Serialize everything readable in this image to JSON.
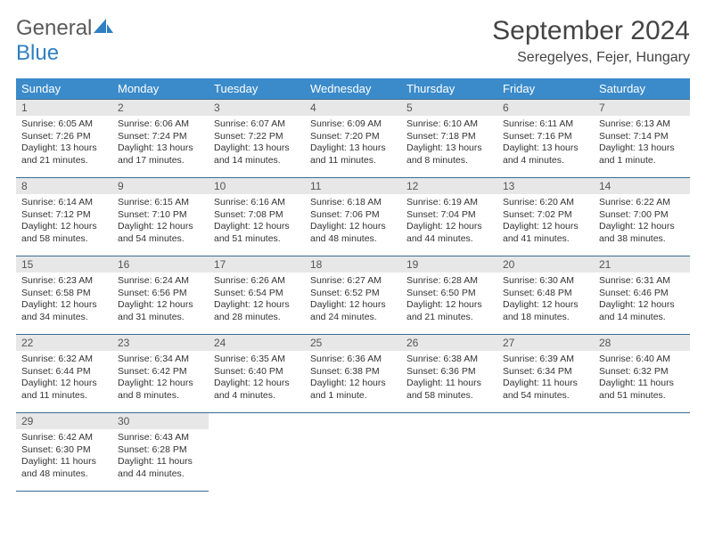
{
  "brand": {
    "general": "General",
    "blue": "Blue"
  },
  "title": "September 2024",
  "location": "Seregelyes, Fejer, Hungary",
  "colors": {
    "header_bg": "#3b8bca",
    "header_text": "#ffffff",
    "daynum_bg": "#e7e7e7",
    "row_border": "#3b6a93",
    "logo_blue": "#2f7fc2",
    "logo_gray": "#5a5a5a"
  },
  "dayHeaders": [
    "Sunday",
    "Monday",
    "Tuesday",
    "Wednesday",
    "Thursday",
    "Friday",
    "Saturday"
  ],
  "weeks": [
    [
      {
        "n": "1",
        "sr": "6:05 AM",
        "ss": "7:26 PM",
        "dl": "13 hours and 21 minutes."
      },
      {
        "n": "2",
        "sr": "6:06 AM",
        "ss": "7:24 PM",
        "dl": "13 hours and 17 minutes."
      },
      {
        "n": "3",
        "sr": "6:07 AM",
        "ss": "7:22 PM",
        "dl": "13 hours and 14 minutes."
      },
      {
        "n": "4",
        "sr": "6:09 AM",
        "ss": "7:20 PM",
        "dl": "13 hours and 11 minutes."
      },
      {
        "n": "5",
        "sr": "6:10 AM",
        "ss": "7:18 PM",
        "dl": "13 hours and 8 minutes."
      },
      {
        "n": "6",
        "sr": "6:11 AM",
        "ss": "7:16 PM",
        "dl": "13 hours and 4 minutes."
      },
      {
        "n": "7",
        "sr": "6:13 AM",
        "ss": "7:14 PM",
        "dl": "13 hours and 1 minute."
      }
    ],
    [
      {
        "n": "8",
        "sr": "6:14 AM",
        "ss": "7:12 PM",
        "dl": "12 hours and 58 minutes."
      },
      {
        "n": "9",
        "sr": "6:15 AM",
        "ss": "7:10 PM",
        "dl": "12 hours and 54 minutes."
      },
      {
        "n": "10",
        "sr": "6:16 AM",
        "ss": "7:08 PM",
        "dl": "12 hours and 51 minutes."
      },
      {
        "n": "11",
        "sr": "6:18 AM",
        "ss": "7:06 PM",
        "dl": "12 hours and 48 minutes."
      },
      {
        "n": "12",
        "sr": "6:19 AM",
        "ss": "7:04 PM",
        "dl": "12 hours and 44 minutes."
      },
      {
        "n": "13",
        "sr": "6:20 AM",
        "ss": "7:02 PM",
        "dl": "12 hours and 41 minutes."
      },
      {
        "n": "14",
        "sr": "6:22 AM",
        "ss": "7:00 PM",
        "dl": "12 hours and 38 minutes."
      }
    ],
    [
      {
        "n": "15",
        "sr": "6:23 AM",
        "ss": "6:58 PM",
        "dl": "12 hours and 34 minutes."
      },
      {
        "n": "16",
        "sr": "6:24 AM",
        "ss": "6:56 PM",
        "dl": "12 hours and 31 minutes."
      },
      {
        "n": "17",
        "sr": "6:26 AM",
        "ss": "6:54 PM",
        "dl": "12 hours and 28 minutes."
      },
      {
        "n": "18",
        "sr": "6:27 AM",
        "ss": "6:52 PM",
        "dl": "12 hours and 24 minutes."
      },
      {
        "n": "19",
        "sr": "6:28 AM",
        "ss": "6:50 PM",
        "dl": "12 hours and 21 minutes."
      },
      {
        "n": "20",
        "sr": "6:30 AM",
        "ss": "6:48 PM",
        "dl": "12 hours and 18 minutes."
      },
      {
        "n": "21",
        "sr": "6:31 AM",
        "ss": "6:46 PM",
        "dl": "12 hours and 14 minutes."
      }
    ],
    [
      {
        "n": "22",
        "sr": "6:32 AM",
        "ss": "6:44 PM",
        "dl": "12 hours and 11 minutes."
      },
      {
        "n": "23",
        "sr": "6:34 AM",
        "ss": "6:42 PM",
        "dl": "12 hours and 8 minutes."
      },
      {
        "n": "24",
        "sr": "6:35 AM",
        "ss": "6:40 PM",
        "dl": "12 hours and 4 minutes."
      },
      {
        "n": "25",
        "sr": "6:36 AM",
        "ss": "6:38 PM",
        "dl": "12 hours and 1 minute."
      },
      {
        "n": "26",
        "sr": "6:38 AM",
        "ss": "6:36 PM",
        "dl": "11 hours and 58 minutes."
      },
      {
        "n": "27",
        "sr": "6:39 AM",
        "ss": "6:34 PM",
        "dl": "11 hours and 54 minutes."
      },
      {
        "n": "28",
        "sr": "6:40 AM",
        "ss": "6:32 PM",
        "dl": "11 hours and 51 minutes."
      }
    ],
    [
      {
        "n": "29",
        "sr": "6:42 AM",
        "ss": "6:30 PM",
        "dl": "11 hours and 48 minutes."
      },
      {
        "n": "30",
        "sr": "6:43 AM",
        "ss": "6:28 PM",
        "dl": "11 hours and 44 minutes."
      },
      null,
      null,
      null,
      null,
      null
    ]
  ],
  "labels": {
    "sunrise": "Sunrise:",
    "sunset": "Sunset:",
    "daylight": "Daylight:"
  }
}
